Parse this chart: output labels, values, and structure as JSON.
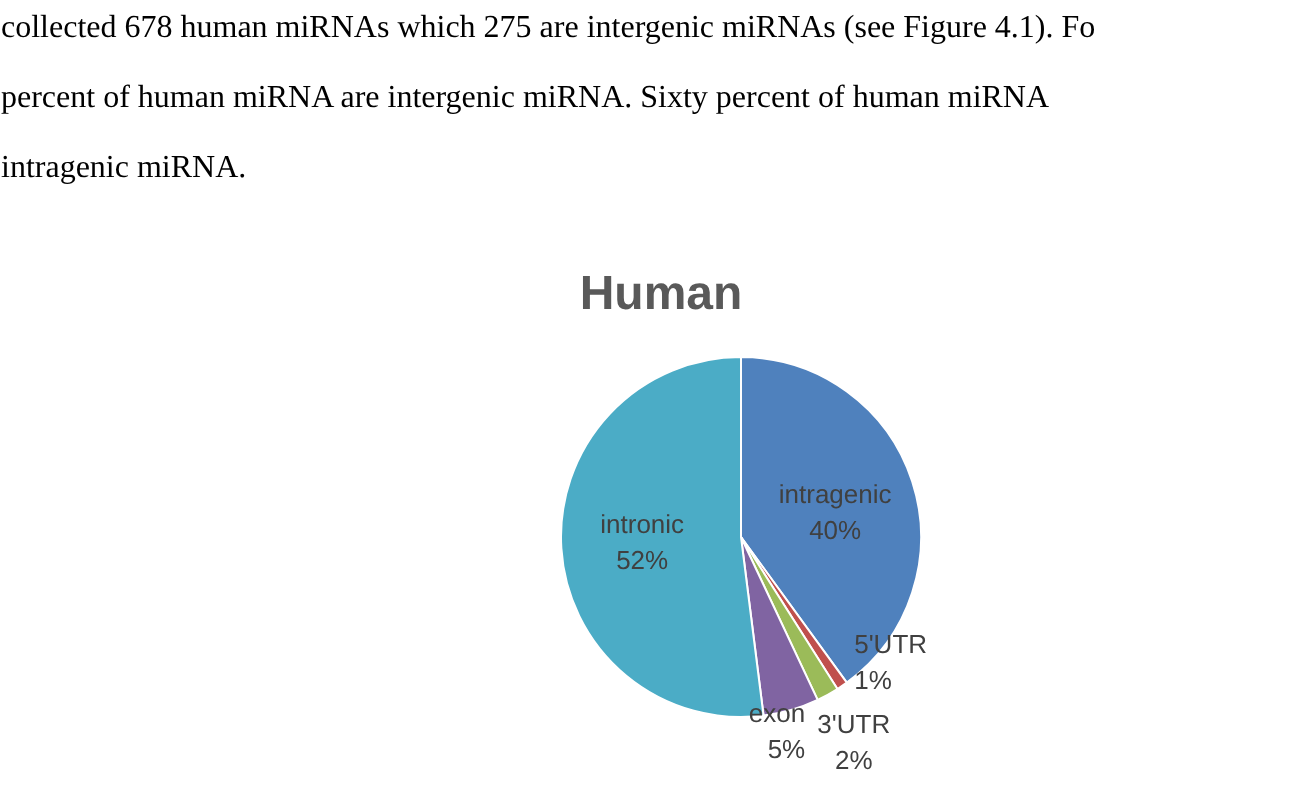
{
  "chart_data": {
    "type": "pie",
    "title": "Human",
    "categories": [
      "intragenic",
      "5'UTR",
      "3'UTR",
      "exon",
      "intronic"
    ],
    "values": [
      40,
      1,
      2,
      5,
      52
    ],
    "colors": [
      "#4f81bd",
      "#c0504d",
      "#9bbb59",
      "#8064a2",
      "#4bacc6"
    ],
    "value_labels": [
      "40%",
      "1%",
      "2%",
      "5%",
      "52%"
    ],
    "annotations": [
      "collected 678 human miRNAs which 275 are intergenic miRNAs (see Figure 4.1).  Fo",
      "percent of human miRNA are intergenic miRNA. Sixty percent of human miRNA",
      "intragenic miRNA."
    ]
  }
}
